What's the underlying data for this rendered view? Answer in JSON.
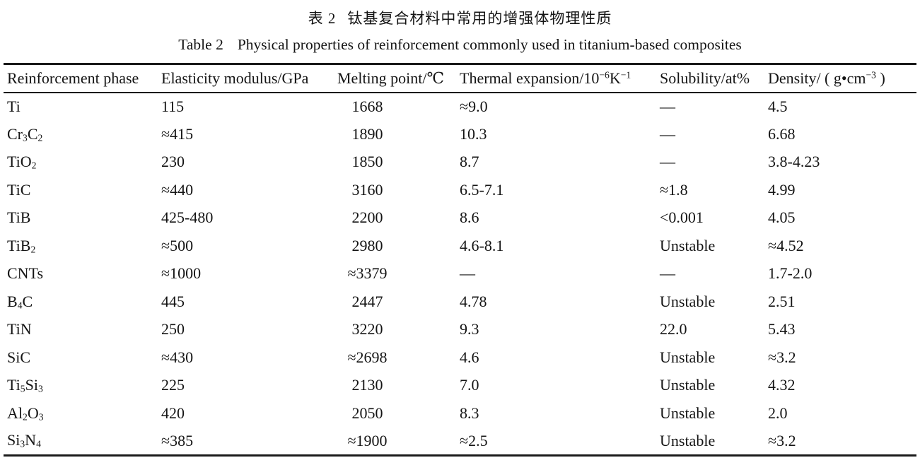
{
  "titles": {
    "chinese_label": "表 2",
    "chinese_text": "钛基复合材料中常用的增强体物理性质",
    "english_label": "Table 2",
    "english_text": "Physical properties of reinforcement commonly used in titanium-based composites"
  },
  "table": {
    "columns": [
      {
        "id": "reinforcement-phase",
        "label": "Reinforcement phase"
      },
      {
        "id": "elasticity-modulus",
        "label": "Elasticity modulus/GPa"
      },
      {
        "id": "melting-point",
        "label": "Melting point/℃"
      },
      {
        "id": "thermal-expansion",
        "label": "Thermal expansion/10^−6^K^−1^"
      },
      {
        "id": "solubility",
        "label": "Solubility/at%"
      },
      {
        "id": "density",
        "label": "Density/ ( g•cm^−3^ )"
      }
    ],
    "cell_names": [
      "phase",
      "elasticity-modulus",
      "melting-point",
      "thermal-expansion",
      "solubility",
      "density"
    ],
    "rows": [
      {
        "cells": [
          "Ti",
          "115",
          "1668",
          "≈9.0",
          "—",
          "4.5"
        ]
      },
      {
        "cells": [
          "Cr~3~C~2~",
          "≈415",
          "1890",
          "10.3",
          "—",
          "6.68"
        ]
      },
      {
        "cells": [
          "TiO~2~",
          "230",
          "1850",
          "8.7",
          "—",
          "3.8-4.23"
        ]
      },
      {
        "cells": [
          "TiC",
          "≈440",
          "3160",
          "6.5-7.1",
          "≈1.8",
          "4.99"
        ]
      },
      {
        "cells": [
          "TiB",
          "425-480",
          "2200",
          "8.6",
          "<0.001",
          "4.05"
        ]
      },
      {
        "cells": [
          "TiB~2~",
          "≈500",
          "2980",
          "4.6-8.1",
          "Unstable",
          "≈4.52"
        ]
      },
      {
        "cells": [
          "CNTs",
          "≈1000",
          "≈3379",
          "—",
          "—",
          "1.7-2.0"
        ]
      },
      {
        "cells": [
          "B~4~C",
          "445",
          "2447",
          "4.78",
          "Unstable",
          "2.51"
        ]
      },
      {
        "cells": [
          "TiN",
          "250",
          "3220",
          "9.3",
          "22.0",
          "5.43"
        ]
      },
      {
        "cells": [
          "SiC",
          "≈430",
          "≈2698",
          "4.6",
          "Unstable",
          "≈3.2"
        ]
      },
      {
        "cells": [
          "Ti~5~Si~3~",
          "225",
          "2130",
          "7.0",
          "Unstable",
          "4.32"
        ]
      },
      {
        "cells": [
          "Al~2~O~3~",
          "420",
          "2050",
          "8.3",
          "Unstable",
          "2.0"
        ]
      },
      {
        "cells": [
          "Si~3~N~4~",
          "≈385",
          "≈1900",
          "≈2.5",
          "Unstable",
          "≈3.2"
        ]
      }
    ],
    "text_color": "#141414",
    "rule_color": "#1a1a1a",
    "background_color": "#ffffff"
  }
}
